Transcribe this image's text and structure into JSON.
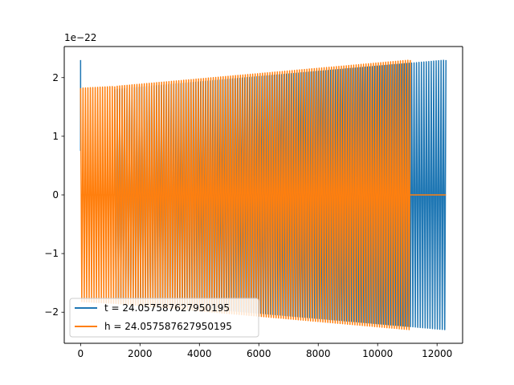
{
  "chart_data": {
    "type": "line",
    "offset_label": "1e−22",
    "xlim": [
      -550,
      12860
    ],
    "ylim": [
      -2.53,
      2.53
    ],
    "xticks": [
      0,
      2000,
      4000,
      6000,
      8000,
      10000,
      12000
    ],
    "xtick_labels": [
      "0",
      "2000",
      "4000",
      "6000",
      "8000",
      "10000",
      "12000"
    ],
    "yticks": [
      -2,
      -1,
      0,
      1,
      2
    ],
    "ytick_labels": [
      "−2",
      "−1",
      "0",
      "1",
      "2"
    ],
    "grid": false,
    "legend_position": "lower-left",
    "series": [
      {
        "name": "t = 24.057587627950195",
        "color": "#1f77b4",
        "segments": [
          {
            "type": "spike",
            "x": 0,
            "y": 2.3,
            "to": 0.75
          },
          {
            "type": "flat",
            "x": [
              30,
              1150
            ],
            "y": 0
          },
          {
            "type": "osc",
            "x": [
              1150,
              12300
            ],
            "amp": [
              1.8,
              2.3
            ],
            "periods": 135
          }
        ]
      },
      {
        "name": "h = 24.057587627950195",
        "color": "#ff7f0e",
        "segments": [
          {
            "type": "osc",
            "x": [
              0,
              1150
            ],
            "amp": [
              1.82,
              1.85
            ],
            "periods": 14
          },
          {
            "type": "flat",
            "x": [
              30,
              1150
            ],
            "y": 0
          },
          {
            "type": "osc",
            "x": [
              1150,
              11100
            ],
            "amp": [
              1.85,
              2.3
            ],
            "periods": 120
          },
          {
            "type": "flat",
            "x": [
              11100,
              12300
            ],
            "y": 0
          }
        ]
      }
    ]
  }
}
